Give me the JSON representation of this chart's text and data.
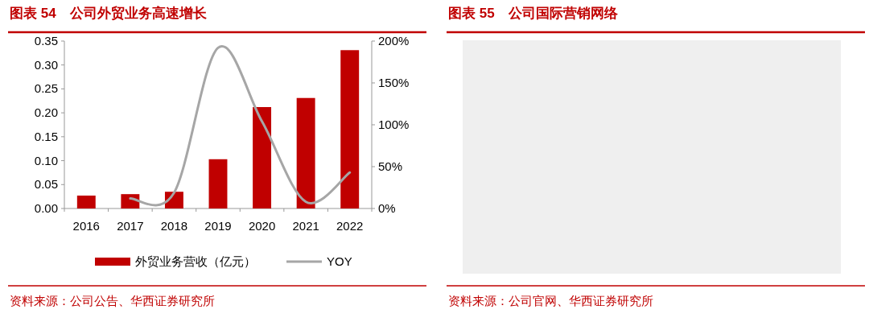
{
  "chart_data": [
    {
      "type": "bar",
      "title": "图表 54　公司外贸业务高速增长",
      "categories": [
        "2016",
        "2017",
        "2018",
        "2019",
        "2020",
        "2021",
        "2022"
      ],
      "series": [
        {
          "name": "外贸业务营收（亿元）",
          "color": "#c00000",
          "values": [
            0.027,
            0.03,
            0.035,
            0.103,
            0.212,
            0.231,
            0.331
          ]
        },
        {
          "name": "YOY",
          "type": "line",
          "axis": "y2",
          "color": "#a6a6a6",
          "values": [
            null,
            12,
            19,
            192,
            104,
            8,
            43
          ]
        }
      ],
      "ylim": [
        0,
        0.35
      ],
      "yticks": [
        {
          "value": 0,
          "label": "0.00"
        },
        {
          "value": 0.05,
          "label": "0.05"
        },
        {
          "value": 0.1,
          "label": "0.10"
        },
        {
          "value": 0.15,
          "label": "0.15"
        },
        {
          "value": 0.2,
          "label": "0.20"
        },
        {
          "value": 0.25,
          "label": "0.25"
        },
        {
          "value": 0.3,
          "label": "0.30"
        },
        {
          "value": 0.35,
          "label": "0.35"
        }
      ],
      "y2lim": [
        0,
        200
      ],
      "y2ticks": [
        {
          "value": 0,
          "label": "0%"
        },
        {
          "value": 50,
          "label": "50%"
        },
        {
          "value": 100,
          "label": "100%"
        },
        {
          "value": 150,
          "label": "150%"
        },
        {
          "value": 200,
          "label": "200%"
        }
      ],
      "legend": "bottom",
      "annotations": [
        "资料来源：公司公告、华西证券研究所"
      ]
    },
    {
      "type": "other",
      "title": "图表 55　公司国际营销网络",
      "annotations": [
        "资料来源：公司官网、华西证券研究所"
      ]
    }
  ]
}
